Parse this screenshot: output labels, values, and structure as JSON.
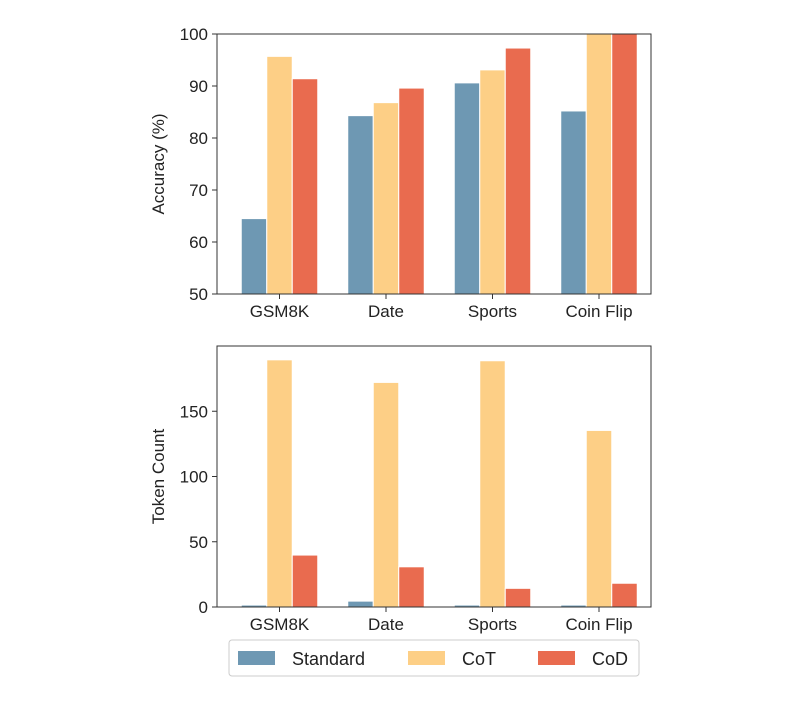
{
  "chart_data": [
    {
      "type": "bar",
      "categories": [
        "GSM8K",
        "Date",
        "Sports",
        "Coin Flip"
      ],
      "series": [
        {
          "name": "Standard",
          "values": [
            64.5,
            84.3,
            90.6,
            85.2
          ]
        },
        {
          "name": "CoT",
          "values": [
            95.7,
            86.8,
            93.1,
            100
          ]
        },
        {
          "name": "CoD",
          "values": [
            91.4,
            89.6,
            97.3,
            100
          ]
        }
      ],
      "xlabel": "",
      "ylabel": "Accuracy (%)",
      "ylim": [
        50,
        100
      ],
      "yticks": [
        50,
        60,
        70,
        80,
        90,
        100
      ],
      "grid": false
    },
    {
      "type": "bar",
      "categories": [
        "GSM8K",
        "Date",
        "Sports",
        "Coin Flip"
      ],
      "series": [
        {
          "name": "Standard",
          "values": [
            1.5,
            4.5,
            1.5,
            1.5
          ]
        },
        {
          "name": "CoT",
          "values": [
            189.4,
            172.1,
            188.7,
            135.3
          ]
        },
        {
          "name": "CoD",
          "values": [
            39.8,
            30.8,
            14.3,
            18.2
          ]
        }
      ],
      "xlabel": "",
      "ylabel": "Token Count",
      "ylim": [
        0,
        200
      ],
      "yticks": [
        0,
        50,
        100,
        150
      ],
      "grid": false
    }
  ],
  "legend": {
    "placement": "bottom-center",
    "entries": [
      "Standard",
      "CoT",
      "CoD"
    ]
  },
  "colors": {
    "Standard": "#6e98b3",
    "CoT": "#fdcf86",
    "CoD": "#e96b4f"
  }
}
